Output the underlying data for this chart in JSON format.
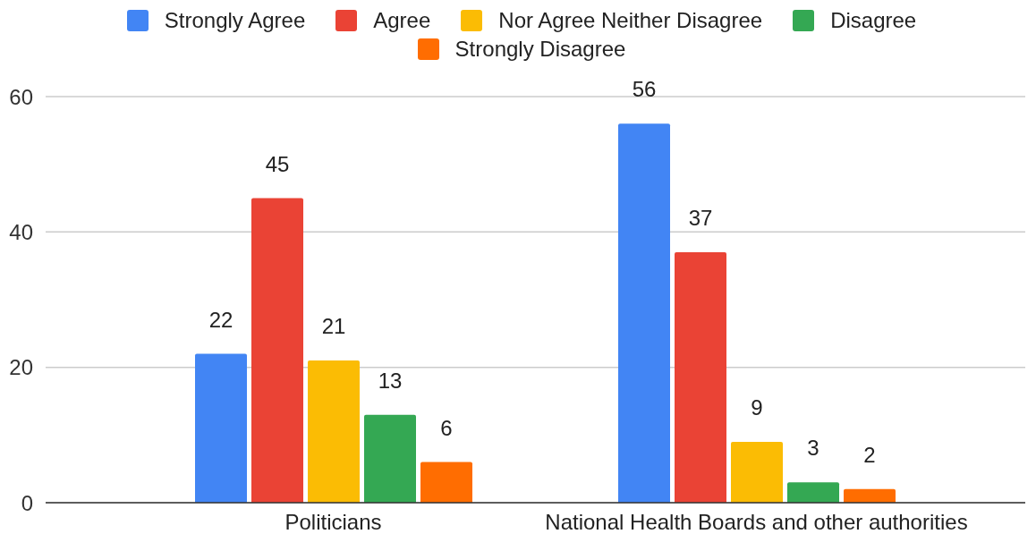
{
  "chart_data": {
    "type": "bar",
    "categories": [
      "Politicians",
      "National Health Boards and other authorities"
    ],
    "series": [
      {
        "name": "Strongly Agree",
        "color": "#4285f4",
        "values": [
          22,
          56
        ]
      },
      {
        "name": "Agree",
        "color": "#ea4335",
        "values": [
          45,
          37
        ]
      },
      {
        "name": "Nor Agree Neither Disagree",
        "color": "#fbbc04",
        "values": [
          21,
          9
        ]
      },
      {
        "name": "Disagree",
        "color": "#34a853",
        "values": [
          13,
          3
        ]
      },
      {
        "name": "Strongly Disagree",
        "color": "#ff6d01",
        "values": [
          6,
          2
        ]
      }
    ],
    "ylim": [
      0,
      60
    ],
    "yticks": [
      0,
      20,
      40,
      60
    ],
    "grid": "y",
    "legend": "top",
    "data_labels": true
  }
}
